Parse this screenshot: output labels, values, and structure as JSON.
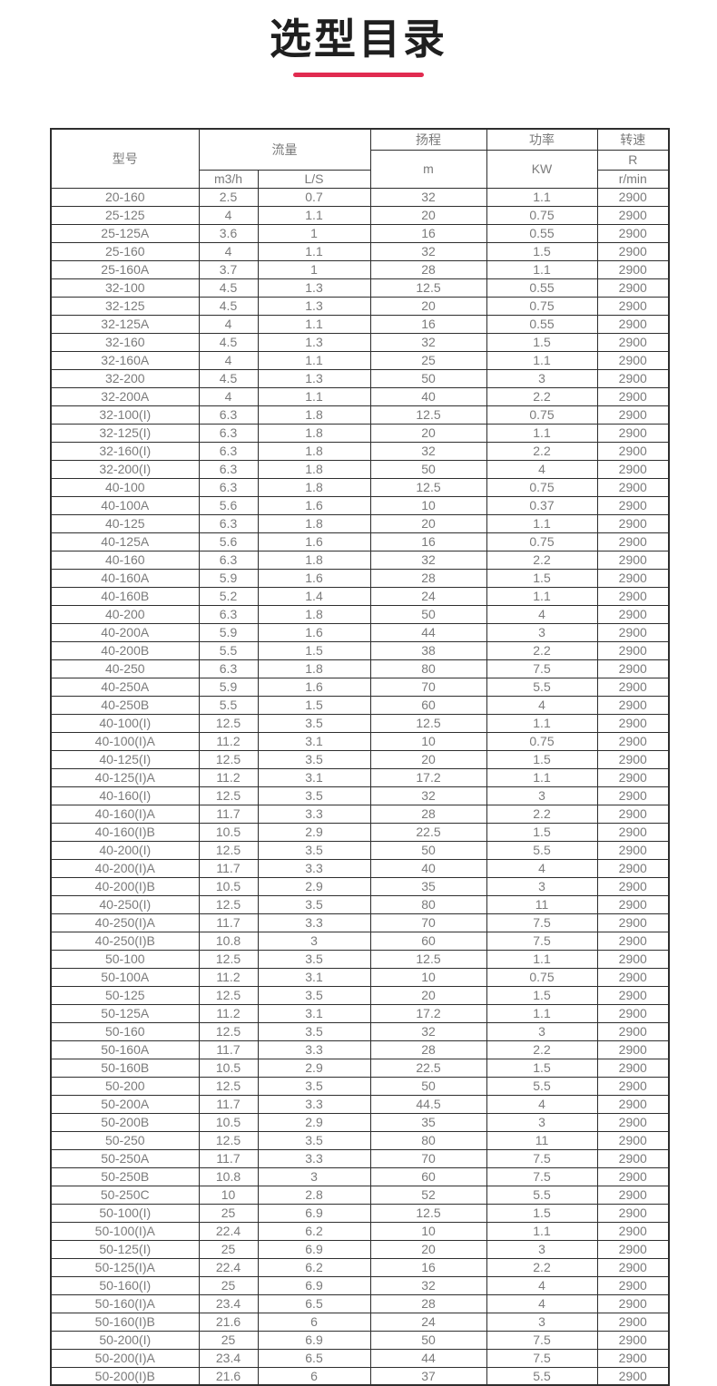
{
  "page": {
    "title": "选型目录",
    "accent_color": "#e12b50"
  },
  "table": {
    "header": {
      "model": "型号",
      "flow": "流量",
      "flow_m3h": "m3/h",
      "flow_ls": "L/S",
      "head": "扬程",
      "head_unit": "m",
      "power": "功率",
      "power_unit": "KW",
      "speed": "转速",
      "speed_unit_r": "R",
      "speed_unit_rmin": "r/min"
    },
    "columns": [
      "model",
      "flow_m3h",
      "flow_ls",
      "head_m",
      "power_kw",
      "speed_rmin"
    ],
    "rows": [
      [
        "20-160",
        "2.5",
        "0.7",
        "32",
        "1.1",
        "2900"
      ],
      [
        "25-125",
        "4",
        "1.1",
        "20",
        "0.75",
        "2900"
      ],
      [
        "25-125A",
        "3.6",
        "1",
        "16",
        "0.55",
        "2900"
      ],
      [
        "25-160",
        "4",
        "1.1",
        "32",
        "1.5",
        "2900"
      ],
      [
        "25-160A",
        "3.7",
        "1",
        "28",
        "1.1",
        "2900"
      ],
      [
        "32-100",
        "4.5",
        "1.3",
        "12.5",
        "0.55",
        "2900"
      ],
      [
        "32-125",
        "4.5",
        "1.3",
        "20",
        "0.75",
        "2900"
      ],
      [
        "32-125A",
        "4",
        "1.1",
        "16",
        "0.55",
        "2900"
      ],
      [
        "32-160",
        "4.5",
        "1.3",
        "32",
        "1.5",
        "2900"
      ],
      [
        "32-160A",
        "4",
        "1.1",
        "25",
        "1.1",
        "2900"
      ],
      [
        "32-200",
        "4.5",
        "1.3",
        "50",
        "3",
        "2900"
      ],
      [
        "32-200A",
        "4",
        "1.1",
        "40",
        "2.2",
        "2900"
      ],
      [
        "32-100(I)",
        "6.3",
        "1.8",
        "12.5",
        "0.75",
        "2900"
      ],
      [
        "32-125(I)",
        "6.3",
        "1.8",
        "20",
        "1.1",
        "2900"
      ],
      [
        "32-160(I)",
        "6.3",
        "1.8",
        "32",
        "2.2",
        "2900"
      ],
      [
        "32-200(I)",
        "6.3",
        "1.8",
        "50",
        "4",
        "2900"
      ],
      [
        "40-100",
        "6.3",
        "1.8",
        "12.5",
        "0.75",
        "2900"
      ],
      [
        "40-100A",
        "5.6",
        "1.6",
        "10",
        "0.37",
        "2900"
      ],
      [
        "40-125",
        "6.3",
        "1.8",
        "20",
        "1.1",
        "2900"
      ],
      [
        "40-125A",
        "5.6",
        "1.6",
        "16",
        "0.75",
        "2900"
      ],
      [
        "40-160",
        "6.3",
        "1.8",
        "32",
        "2.2",
        "2900"
      ],
      [
        "40-160A",
        "5.9",
        "1.6",
        "28",
        "1.5",
        "2900"
      ],
      [
        "40-160B",
        "5.2",
        "1.4",
        "24",
        "1.1",
        "2900"
      ],
      [
        "40-200",
        "6.3",
        "1.8",
        "50",
        "4",
        "2900"
      ],
      [
        "40-200A",
        "5.9",
        "1.6",
        "44",
        "3",
        "2900"
      ],
      [
        "40-200B",
        "5.5",
        "1.5",
        "38",
        "2.2",
        "2900"
      ],
      [
        "40-250",
        "6.3",
        "1.8",
        "80",
        "7.5",
        "2900"
      ],
      [
        "40-250A",
        "5.9",
        "1.6",
        "70",
        "5.5",
        "2900"
      ],
      [
        "40-250B",
        "5.5",
        "1.5",
        "60",
        "4",
        "2900"
      ],
      [
        "40-100(I)",
        "12.5",
        "3.5",
        "12.5",
        "1.1",
        "2900"
      ],
      [
        "40-100(I)A",
        "11.2",
        "3.1",
        "10",
        "0.75",
        "2900"
      ],
      [
        "40-125(I)",
        "12.5",
        "3.5",
        "20",
        "1.5",
        "2900"
      ],
      [
        "40-125(I)A",
        "11.2",
        "3.1",
        "17.2",
        "1.1",
        "2900"
      ],
      [
        "40-160(I)",
        "12.5",
        "3.5",
        "32",
        "3",
        "2900"
      ],
      [
        "40-160(I)A",
        "11.7",
        "3.3",
        "28",
        "2.2",
        "2900"
      ],
      [
        "40-160(I)B",
        "10.5",
        "2.9",
        "22.5",
        "1.5",
        "2900"
      ],
      [
        "40-200(I)",
        "12.5",
        "3.5",
        "50",
        "5.5",
        "2900"
      ],
      [
        "40-200(I)A",
        "11.7",
        "3.3",
        "40",
        "4",
        "2900"
      ],
      [
        "40-200(I)B",
        "10.5",
        "2.9",
        "35",
        "3",
        "2900"
      ],
      [
        "40-250(I)",
        "12.5",
        "3.5",
        "80",
        "11",
        "2900"
      ],
      [
        "40-250(I)A",
        "11.7",
        "3.3",
        "70",
        "7.5",
        "2900"
      ],
      [
        "40-250(I)B",
        "10.8",
        "3",
        "60",
        "7.5",
        "2900"
      ],
      [
        "50-100",
        "12.5",
        "3.5",
        "12.5",
        "1.1",
        "2900"
      ],
      [
        "50-100A",
        "11.2",
        "3.1",
        "10",
        "0.75",
        "2900"
      ],
      [
        "50-125",
        "12.5",
        "3.5",
        "20",
        "1.5",
        "2900"
      ],
      [
        "50-125A",
        "11.2",
        "3.1",
        "17.2",
        "1.1",
        "2900"
      ],
      [
        "50-160",
        "12.5",
        "3.5",
        "32",
        "3",
        "2900"
      ],
      [
        "50-160A",
        "11.7",
        "3.3",
        "28",
        "2.2",
        "2900"
      ],
      [
        "50-160B",
        "10.5",
        "2.9",
        "22.5",
        "1.5",
        "2900"
      ],
      [
        "50-200",
        "12.5",
        "3.5",
        "50",
        "5.5",
        "2900"
      ],
      [
        "50-200A",
        "11.7",
        "3.3",
        "44.5",
        "4",
        "2900"
      ],
      [
        "50-200B",
        "10.5",
        "2.9",
        "35",
        "3",
        "2900"
      ],
      [
        "50-250",
        "12.5",
        "3.5",
        "80",
        "11",
        "2900"
      ],
      [
        "50-250A",
        "11.7",
        "3.3",
        "70",
        "7.5",
        "2900"
      ],
      [
        "50-250B",
        "10.8",
        "3",
        "60",
        "7.5",
        "2900"
      ],
      [
        "50-250C",
        "10",
        "2.8",
        "52",
        "5.5",
        "2900"
      ],
      [
        "50-100(I)",
        "25",
        "6.9",
        "12.5",
        "1.5",
        "2900"
      ],
      [
        "50-100(I)A",
        "22.4",
        "6.2",
        "10",
        "1.1",
        "2900"
      ],
      [
        "50-125(I)",
        "25",
        "6.9",
        "20",
        "3",
        "2900"
      ],
      [
        "50-125(I)A",
        "22.4",
        "6.2",
        "16",
        "2.2",
        "2900"
      ],
      [
        "50-160(I)",
        "25",
        "6.9",
        "32",
        "4",
        "2900"
      ],
      [
        "50-160(I)A",
        "23.4",
        "6.5",
        "28",
        "4",
        "2900"
      ],
      [
        "50-160(I)B",
        "21.6",
        "6",
        "24",
        "3",
        "2900"
      ],
      [
        "50-200(I)",
        "25",
        "6.9",
        "50",
        "7.5",
        "2900"
      ],
      [
        "50-200(I)A",
        "23.4",
        "6.5",
        "44",
        "7.5",
        "2900"
      ],
      [
        "50-200(I)B",
        "21.6",
        "6",
        "37",
        "5.5",
        "2900"
      ]
    ]
  }
}
